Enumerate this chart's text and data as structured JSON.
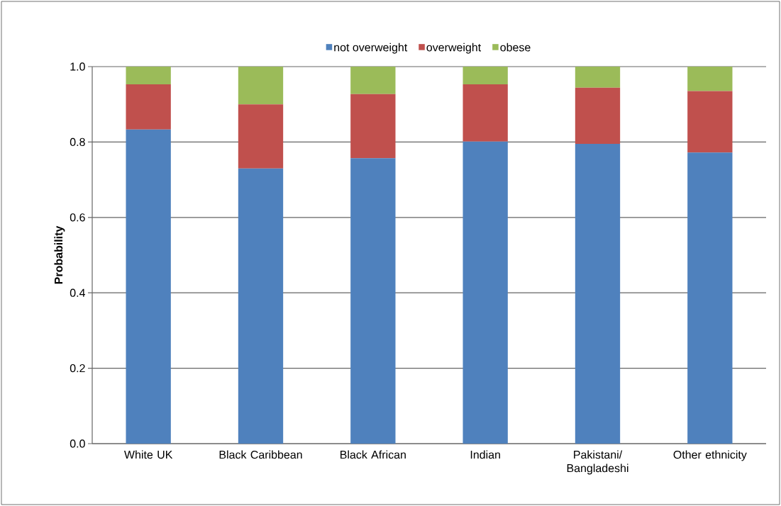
{
  "chart_data": {
    "type": "bar",
    "stacked": true,
    "ylabel": "Probability",
    "categories": [
      "White UK",
      "Black Caribbean",
      "Black African",
      "Indian",
      "Pakistani/ Bangladeshi",
      "Other ethnicity"
    ],
    "series": [
      {
        "name": "not overweight",
        "color": "#4f81bd",
        "values": [
          0.833,
          0.73,
          0.757,
          0.801,
          0.795,
          0.772
        ]
      },
      {
        "name": "overweight",
        "color": "#c0504d",
        "values": [
          0.12,
          0.17,
          0.17,
          0.152,
          0.149,
          0.163
        ]
      },
      {
        "name": "obese",
        "color": "#9bbb59",
        "values": [
          0.047,
          0.1,
          0.073,
          0.047,
          0.056,
          0.065
        ]
      }
    ],
    "ylim": [
      0,
      1
    ],
    "yticks": [
      {
        "value": 0,
        "label": "0.0"
      },
      {
        "value": 0.2,
        "label": "0.2"
      },
      {
        "value": 0.4,
        "label": "0.4"
      },
      {
        "value": 0.6,
        "label": "0.6"
      },
      {
        "value": 0.8,
        "label": "0.8"
      },
      {
        "value": 1,
        "label": "1.0"
      }
    ],
    "grid": "y",
    "legend": "top"
  }
}
